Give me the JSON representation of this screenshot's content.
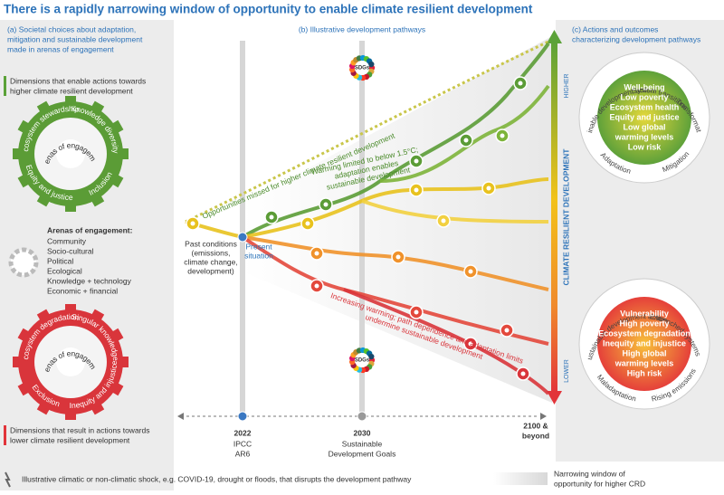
{
  "title": "There is a rapidly narrowing window of opportunity to enable climate resilient development",
  "panel_a": {
    "heading": [
      "(a) Societal choices about adaptation,",
      "mitigation and sustainable development",
      "made in arenas of engagement"
    ],
    "enable_caption": [
      "Dimensions that enable actions towards",
      "higher climate resilient development"
    ],
    "green_gear": {
      "center": "Arenas of engagement",
      "top_left": "Ecosystem stewardship",
      "top_right": "Knowledge diversity",
      "bottom_left": "Equity and justice",
      "bottom_right": "Inclusion"
    },
    "arenas_heading": "Arenas of engagement:",
    "arenas": [
      "Community",
      "Socio-cultural",
      "Political",
      "Ecological",
      "Knowledge + technology",
      "Economic + financial"
    ],
    "red_gear": {
      "center": "Arenas of engagement",
      "top_left": "Ecosystem degradation",
      "top_right": "Singular knowledge",
      "bottom_left": "Exclusion",
      "bottom_right": "Inequity and injustice"
    },
    "lower_caption": [
      "Dimensions that result in actions towards",
      "lower climate resilient development"
    ]
  },
  "panel_b": {
    "heading": "(b) Illustrative development pathways",
    "sdg_top": "SDGs",
    "sdg_bottom": "SDGs",
    "missed": "Opportunities missed for higher climate resilient development",
    "warming_limited": [
      "Warming limited to below 1.5°C;",
      "adaptation enables",
      "sustainable development"
    ],
    "past_conditions": [
      "Past conditions",
      "(emissions,",
      "climate change,",
      "development)"
    ],
    "present": [
      "Present",
      "situation"
    ],
    "increasing_warming": [
      "Increasing warming; path dependence and adaptation limits",
      "undermine sustainable development"
    ],
    "axis": [
      {
        "year": "2022",
        "label": [
          "IPCC",
          "AR6"
        ]
      },
      {
        "year": "2030",
        "label": [
          "Sustainable",
          "Development Goals"
        ]
      },
      {
        "year": "",
        "label": [
          "2100 &",
          "beyond"
        ]
      }
    ],
    "crd_axis": "CLIMATE RESILIENT DEVELOPMENT",
    "higher": "HIGHER",
    "lower": "LOWER"
  },
  "panel_c": {
    "heading": [
      "(c) Actions and outcomes",
      "characterizing development pathways"
    ],
    "high": {
      "ring_top": [
        "Sustainable development action",
        "System transitions",
        "Transformation"
      ],
      "ring_bottom": [
        "Adaptation",
        "Mitigation"
      ],
      "outcomes": [
        "Well-being",
        "Low poverty",
        "Ecosystem health",
        "Equity and justice",
        "Low global",
        "warming levels",
        "Low risk"
      ]
    },
    "low": {
      "ring_top": [
        "Unsustainable development action",
        "Entrenched systems"
      ],
      "ring_bottom": [
        "Maladaptation",
        "Rising emissions"
      ],
      "outcomes": [
        "Vulnerability",
        "High poverty",
        "Ecosystem degradation",
        "Inequity and injustice",
        "High global",
        "warming levels",
        "High risk"
      ]
    }
  },
  "footer": {
    "shock": "Illustrative climatic or non-climatic shock, e.g. COVID-19, drought or floods, that disrupts the development pathway",
    "window": [
      "Narrowing window of",
      "opportunity for higher CRD"
    ]
  }
}
